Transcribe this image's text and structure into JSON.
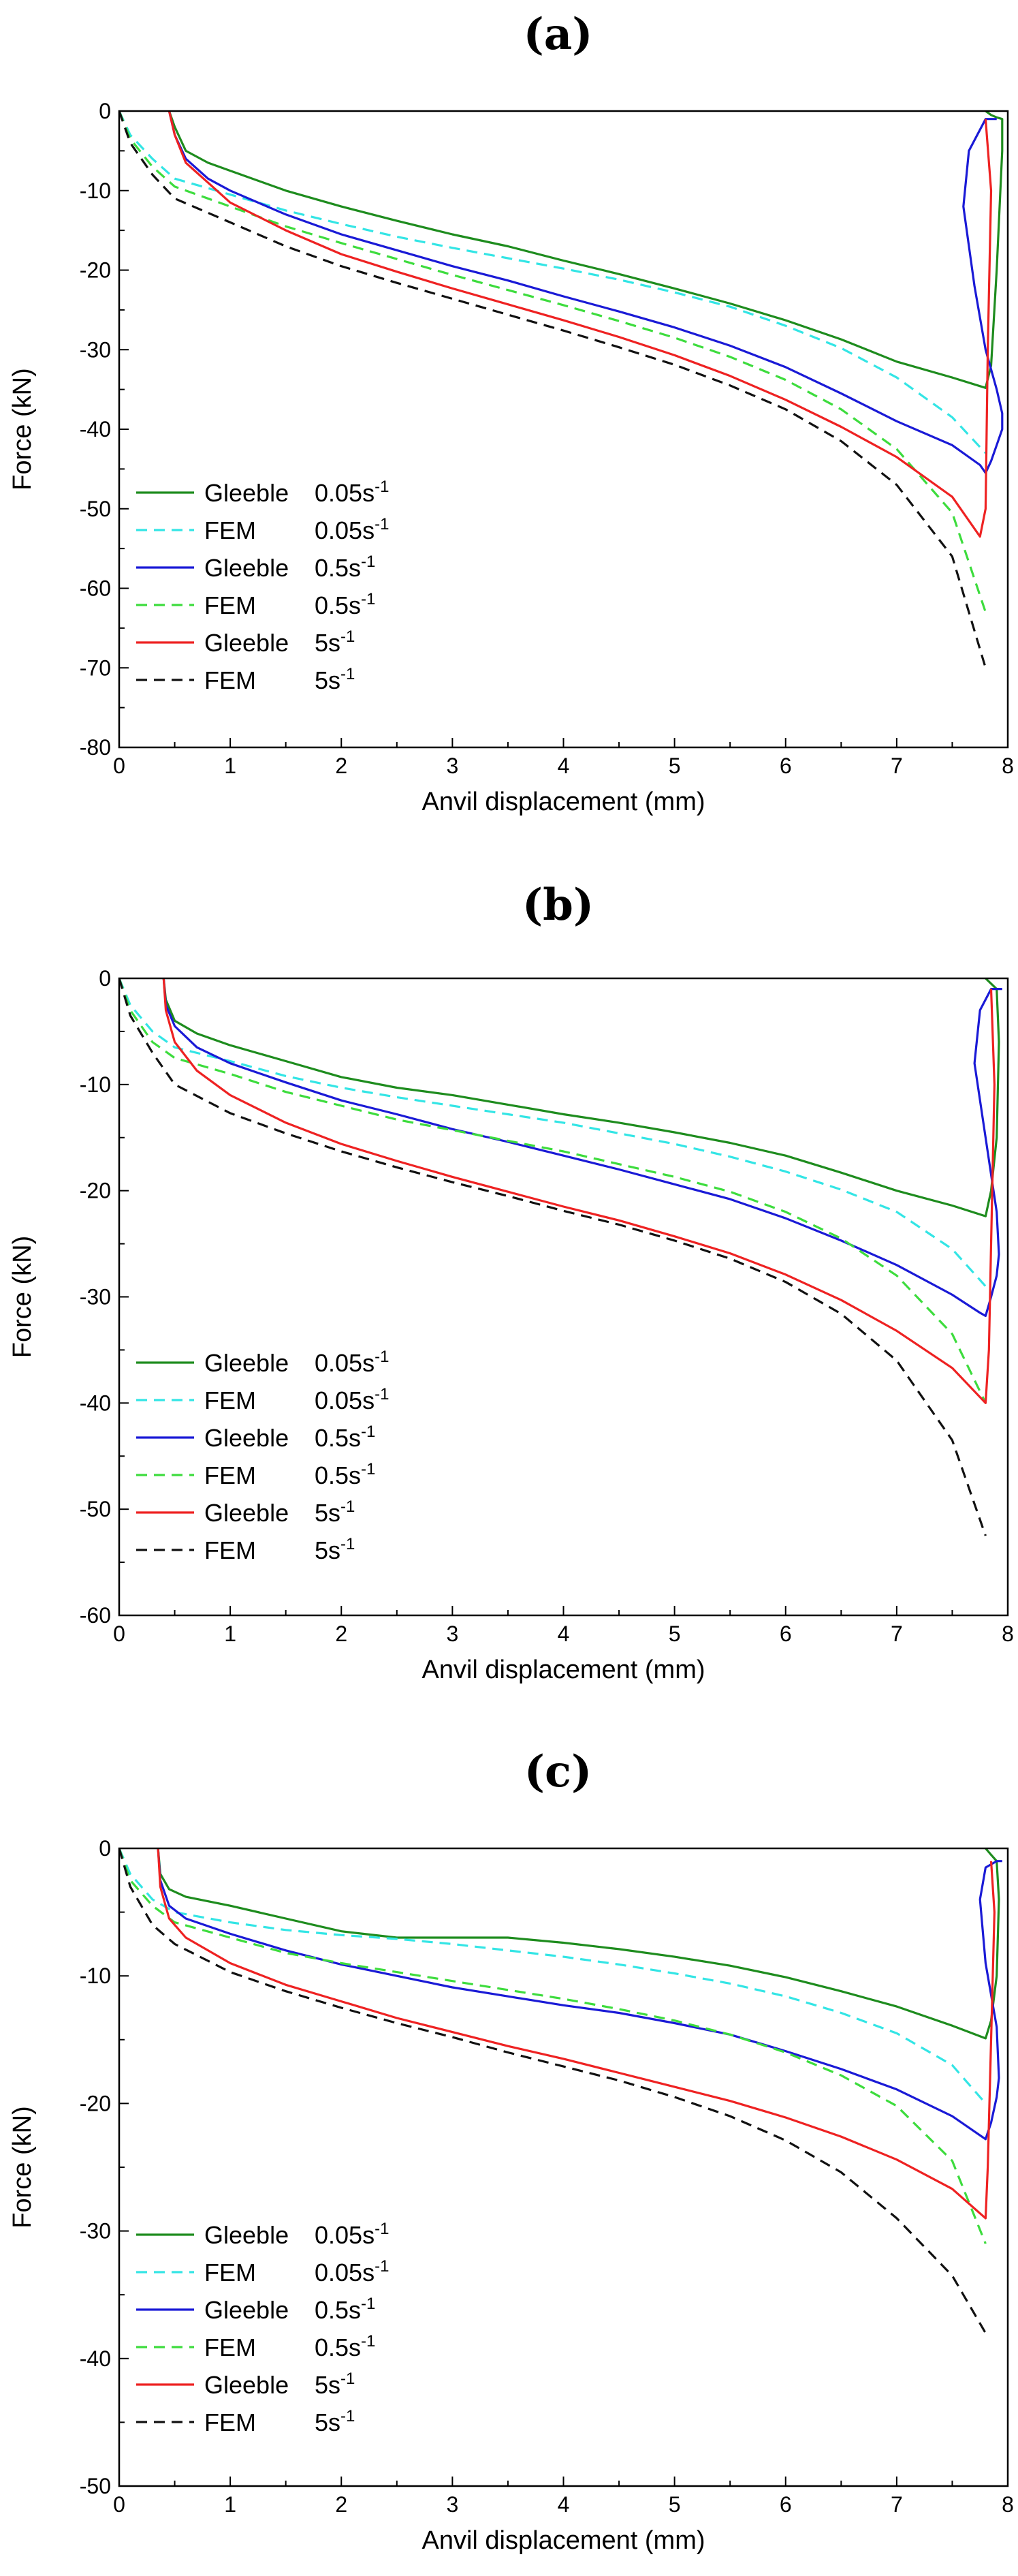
{
  "chart_data": [
    {
      "type": "line",
      "panel_label": "(a)",
      "xlabel": "Anvil displacement (mm)",
      "ylabel": "Force (kN)",
      "xlim": [
        0,
        8
      ],
      "ylim": [
        -80,
        0
      ],
      "xticks": [
        0,
        1,
        2,
        3,
        4,
        5,
        6,
        7,
        8
      ],
      "yticks": [
        0,
        -10,
        -20,
        -30,
        -40,
        -50,
        -60,
        -70,
        -80
      ],
      "legend_position": "lower-left",
      "series": [
        {
          "name": "Gleeble",
          "rate": "0.05s",
          "rate_exp": "-1",
          "color": "#1e8c1e",
          "dash": "solid",
          "x": [
            0.45,
            0.5,
            0.6,
            0.8,
            1,
            1.5,
            2,
            2.5,
            3,
            3.5,
            4,
            4.5,
            5,
            5.5,
            6,
            6.5,
            7,
            7.5,
            7.8,
            7.85,
            7.9,
            7.95,
            7.95,
            7.9,
            7.85,
            7.8
          ],
          "y": [
            0,
            -2,
            -5,
            -6.5,
            -7.5,
            -10,
            -12,
            -13.8,
            -15.5,
            -17,
            -18.8,
            -20.5,
            -22.3,
            -24.2,
            -26.3,
            -28.7,
            -31.5,
            -33.5,
            -34.8,
            -32,
            -20,
            -5,
            -1,
            -0.8,
            -0.5,
            0
          ]
        },
        {
          "name": "FEM",
          "rate": "0.05s",
          "rate_exp": "-1",
          "color": "#33e5e5",
          "dash": "dashed",
          "x": [
            0,
            0.1,
            0.3,
            0.5,
            1,
            1.5,
            2,
            2.5,
            3,
            3.5,
            4,
            4.5,
            5,
            5.5,
            6,
            6.5,
            7,
            7.5,
            7.8
          ],
          "y": [
            0,
            -3,
            -6,
            -8.5,
            -10.5,
            -12.5,
            -14.2,
            -15.8,
            -17.2,
            -18.5,
            -19.8,
            -21.2,
            -22.8,
            -24.6,
            -27,
            -29.8,
            -33.5,
            -38.5,
            -43
          ]
        },
        {
          "name": "Gleeble",
          "rate": "0.5s",
          "rate_exp": "-1",
          "color": "#1a1ad6",
          "dash": "solid",
          "x": [
            0.45,
            0.5,
            0.6,
            0.8,
            1,
            1.5,
            2,
            2.5,
            3,
            3.5,
            4,
            4.5,
            5,
            5.5,
            6,
            6.5,
            7,
            7.5,
            7.75,
            7.8,
            7.85,
            7.9,
            7.95,
            7.95,
            7.9,
            7.8,
            7.7,
            7.6,
            7.65,
            7.8,
            7.9
          ],
          "y": [
            0,
            -3,
            -6,
            -8.5,
            -10,
            -13,
            -15.5,
            -17.5,
            -19.5,
            -21.3,
            -23.3,
            -25.2,
            -27.2,
            -29.5,
            -32.2,
            -35.5,
            -39,
            -42,
            -44.5,
            -45.5,
            -44,
            -42,
            -40,
            -38,
            -35,
            -30,
            -22,
            -12,
            -5,
            -1,
            -1
          ]
        },
        {
          "name": "FEM",
          "rate": "0.5s",
          "rate_exp": "-1",
          "color": "#3ddc3d",
          "dash": "dashed",
          "x": [
            0,
            0.1,
            0.3,
            0.5,
            1,
            1.5,
            2,
            2.5,
            3,
            3.5,
            4,
            4.5,
            5,
            5.5,
            6,
            6.5,
            7,
            7.5,
            7.8
          ],
          "y": [
            0,
            -3.5,
            -7,
            -9.5,
            -12,
            -14.5,
            -16.6,
            -18.6,
            -20.6,
            -22.5,
            -24.4,
            -26.4,
            -28.5,
            -30.9,
            -33.8,
            -37.5,
            -42.5,
            -50.5,
            -63
          ]
        },
        {
          "name": "Gleeble",
          "rate": "5s",
          "rate_exp": "-1",
          "color": "#ee2222",
          "dash": "solid",
          "x": [
            0.45,
            0.5,
            0.6,
            0.8,
            1,
            1.5,
            2,
            2.5,
            3,
            3.5,
            4,
            4.5,
            5,
            5.5,
            6,
            6.5,
            7,
            7.5,
            7.75,
            7.8,
            7.82,
            7.85,
            7.8
          ],
          "y": [
            0,
            -3,
            -6.5,
            -9,
            -11.5,
            -15,
            -18,
            -20.2,
            -22.3,
            -24.3,
            -26.3,
            -28.4,
            -30.7,
            -33.3,
            -36.3,
            -39.7,
            -43.5,
            -48.5,
            -53.5,
            -50,
            -30,
            -10,
            -1
          ]
        },
        {
          "name": "FEM",
          "rate": "5s",
          "rate_exp": "-1",
          "color": "#111111",
          "dash": "dashed",
          "x": [
            0,
            0.1,
            0.3,
            0.5,
            1,
            1.5,
            2,
            2.5,
            3,
            3.5,
            4,
            4.5,
            5,
            5.5,
            6,
            6.5,
            7,
            7.5,
            7.8
          ],
          "y": [
            0,
            -4,
            -8,
            -11,
            -14,
            -17,
            -19.5,
            -21.6,
            -23.6,
            -25.6,
            -27.6,
            -29.7,
            -31.9,
            -34.5,
            -37.5,
            -41.5,
            -47,
            -56,
            -70
          ]
        }
      ]
    },
    {
      "type": "line",
      "panel_label": "(b)",
      "xlabel": "Anvil displacement (mm)",
      "ylabel": "Force (kN)",
      "xlim": [
        0,
        8
      ],
      "ylim": [
        -60,
        0
      ],
      "xticks": [
        0,
        1,
        2,
        3,
        4,
        5,
        6,
        7,
        8
      ],
      "yticks": [
        0,
        -10,
        -20,
        -30,
        -40,
        -50,
        -60
      ],
      "legend_position": "lower-left",
      "series": [
        {
          "name": "Gleeble",
          "rate": "0.05s",
          "rate_exp": "-1",
          "color": "#1e8c1e",
          "dash": "solid",
          "x": [
            0.4,
            0.42,
            0.5,
            0.7,
            1,
            1.5,
            2,
            2.5,
            3,
            3.5,
            4,
            4.5,
            5,
            5.5,
            6,
            6.5,
            7,
            7.5,
            7.8,
            7.85,
            7.9,
            7.92,
            7.9,
            7.85,
            7.8
          ],
          "y": [
            0,
            -2,
            -4,
            -5.2,
            -6.3,
            -7.8,
            -9.3,
            -10.3,
            -11,
            -11.9,
            -12.8,
            -13.6,
            -14.5,
            -15.5,
            -16.7,
            -18.3,
            -20,
            -21.4,
            -22.4,
            -20,
            -15,
            -6,
            -1,
            -0.5,
            0
          ]
        },
        {
          "name": "FEM",
          "rate": "0.05s",
          "rate_exp": "-1",
          "color": "#33e5e5",
          "dash": "dashed",
          "x": [
            0,
            0.1,
            0.3,
            0.5,
            1,
            1.5,
            2,
            2.5,
            3,
            3.5,
            4,
            4.5,
            5,
            5.5,
            6,
            6.5,
            7,
            7.5,
            7.8
          ],
          "y": [
            0,
            -2.5,
            -5,
            -6.5,
            -7.8,
            -9.2,
            -10.3,
            -11.2,
            -12,
            -12.8,
            -13.6,
            -14.6,
            -15.6,
            -16.8,
            -18.2,
            -19.9,
            -22,
            -25.5,
            -29
          ]
        },
        {
          "name": "Gleeble",
          "rate": "0.5s",
          "rate_exp": "-1",
          "color": "#1a1ad6",
          "dash": "solid",
          "x": [
            0.4,
            0.42,
            0.5,
            0.7,
            1,
            1.5,
            2,
            2.5,
            3,
            3.5,
            4,
            4.5,
            5,
            5.5,
            6,
            6.5,
            7,
            7.5,
            7.75,
            7.8,
            7.85,
            7.9,
            7.92,
            7.9,
            7.8,
            7.7,
            7.75,
            7.85,
            7.95
          ],
          "y": [
            0,
            -2.5,
            -4.5,
            -6.5,
            -8,
            -9.8,
            -11.5,
            -12.8,
            -14.2,
            -15.4,
            -16.7,
            -18,
            -19.4,
            -20.8,
            -22.6,
            -24.7,
            -27,
            -29.8,
            -31.5,
            -31.8,
            -30,
            -28,
            -26,
            -22,
            -15,
            -8,
            -3,
            -1,
            -1
          ]
        },
        {
          "name": "FEM",
          "rate": "0.5s",
          "rate_exp": "-1",
          "color": "#3ddc3d",
          "dash": "dashed",
          "x": [
            0,
            0.1,
            0.3,
            0.5,
            1,
            1.5,
            2,
            2.5,
            3,
            3.5,
            4,
            4.5,
            5,
            5.5,
            6,
            6.5,
            7,
            7.5,
            7.8
          ],
          "y": [
            0,
            -3,
            -6,
            -7.5,
            -9,
            -10.7,
            -12,
            -13.3,
            -14.3,
            -15.3,
            -16.3,
            -17.5,
            -18.7,
            -20.1,
            -22,
            -24.5,
            -28,
            -33.5,
            -40
          ]
        },
        {
          "name": "Gleeble",
          "rate": "5s",
          "rate_exp": "-1",
          "color": "#ee2222",
          "dash": "solid",
          "x": [
            0.4,
            0.42,
            0.5,
            0.7,
            1,
            1.5,
            2,
            2.5,
            3,
            3.5,
            4,
            4.5,
            5,
            5.5,
            6,
            6.5,
            7,
            7.5,
            7.8,
            7.83,
            7.85,
            7.88,
            7.85
          ],
          "y": [
            0,
            -3,
            -6,
            -8.7,
            -11,
            -13.6,
            -15.6,
            -17.2,
            -18.7,
            -20.1,
            -21.5,
            -22.8,
            -24.3,
            -25.9,
            -27.9,
            -30.3,
            -33.2,
            -36.7,
            -40,
            -35,
            -25,
            -10,
            -1
          ]
        },
        {
          "name": "FEM",
          "rate": "5s",
          "rate_exp": "-1",
          "color": "#111111",
          "dash": "dashed",
          "x": [
            0,
            0.1,
            0.3,
            0.5,
            1,
            1.5,
            2,
            2.5,
            3,
            3.5,
            4,
            4.5,
            5,
            5.5,
            6,
            6.5,
            7,
            7.5,
            7.8
          ],
          "y": [
            0,
            -3.5,
            -7,
            -10,
            -12.7,
            -14.6,
            -16.3,
            -17.8,
            -19.2,
            -20.5,
            -21.9,
            -23.2,
            -24.7,
            -26.4,
            -28.6,
            -31.6,
            -36,
            -43.5,
            -52.5
          ]
        }
      ]
    },
    {
      "type": "line",
      "panel_label": "(c)",
      "xlabel": "Anvil displacement (mm)",
      "ylabel": "Force (kN)",
      "xlim": [
        0,
        8
      ],
      "ylim": [
        -50,
        0
      ],
      "xticks": [
        0,
        1,
        2,
        3,
        4,
        5,
        6,
        7,
        8
      ],
      "yticks": [
        0,
        -10,
        -20,
        -30,
        -40,
        -50
      ],
      "legend_position": "lower-left",
      "series": [
        {
          "name": "Gleeble",
          "rate": "0.05s",
          "rate_exp": "-1",
          "color": "#1e8c1e",
          "dash": "solid",
          "x": [
            0.35,
            0.37,
            0.45,
            0.6,
            1,
            1.5,
            2,
            2.5,
            3,
            3.5,
            4,
            4.5,
            5,
            5.5,
            6,
            6.5,
            7,
            7.5,
            7.8,
            7.85,
            7.9,
            7.92,
            7.9,
            7.85,
            7.8
          ],
          "y": [
            0,
            -2,
            -3.2,
            -3.8,
            -4.5,
            -5.5,
            -6.5,
            -7,
            -7,
            -7,
            -7.4,
            -7.9,
            -8.5,
            -9.2,
            -10.1,
            -11.2,
            -12.4,
            -13.9,
            -14.9,
            -13.5,
            -10,
            -4,
            -1,
            -0.5,
            0
          ]
        },
        {
          "name": "FEM",
          "rate": "0.05s",
          "rate_exp": "-1",
          "color": "#33e5e5",
          "dash": "dashed",
          "x": [
            0,
            0.1,
            0.3,
            0.5,
            1,
            1.5,
            2,
            2.5,
            3,
            3.5,
            4,
            4.5,
            5,
            5.5,
            6,
            6.5,
            7,
            7.5,
            7.8
          ],
          "y": [
            0,
            -2,
            -4,
            -5,
            -5.8,
            -6.4,
            -6.8,
            -7.1,
            -7.5,
            -8,
            -8.5,
            -9.1,
            -9.8,
            -10.6,
            -11.6,
            -12.9,
            -14.5,
            -17,
            -20
          ]
        },
        {
          "name": "Gleeble",
          "rate": "0.5s",
          "rate_exp": "-1",
          "color": "#1a1ad6",
          "dash": "solid",
          "x": [
            0.35,
            0.37,
            0.45,
            0.6,
            1,
            1.5,
            2,
            2.5,
            3,
            3.5,
            4,
            4.5,
            5,
            5.5,
            6,
            6.5,
            7,
            7.5,
            7.75,
            7.8,
            7.85,
            7.9,
            7.92,
            7.9,
            7.8,
            7.75,
            7.8,
            7.9,
            7.95
          ],
          "y": [
            0,
            -2.5,
            -4.5,
            -5.5,
            -6.7,
            -8,
            -9.1,
            -10,
            -10.9,
            -11.6,
            -12.3,
            -12.9,
            -13.7,
            -14.6,
            -15.9,
            -17.3,
            -18.9,
            -21,
            -22.5,
            -22.8,
            -21.5,
            -19.5,
            -18,
            -14,
            -9,
            -4,
            -1.5,
            -1,
            -1
          ]
        },
        {
          "name": "FEM",
          "rate": "0.5s",
          "rate_exp": "-1",
          "color": "#3ddc3d",
          "dash": "dashed",
          "x": [
            0,
            0.1,
            0.3,
            0.5,
            1,
            1.5,
            2,
            2.5,
            3,
            3.5,
            4,
            4.5,
            5,
            5.5,
            6,
            6.5,
            7,
            7.5,
            7.8
          ],
          "y": [
            0,
            -2.5,
            -4.5,
            -5.8,
            -7,
            -8.2,
            -9,
            -9.7,
            -10.4,
            -11.1,
            -11.8,
            -12.6,
            -13.5,
            -14.6,
            -16,
            -17.8,
            -20.2,
            -24.5,
            -31
          ]
        },
        {
          "name": "Gleeble",
          "rate": "5s",
          "rate_exp": "-1",
          "color": "#ee2222",
          "dash": "solid",
          "x": [
            0.35,
            0.37,
            0.45,
            0.6,
            1,
            1.5,
            2,
            2.5,
            3,
            3.5,
            4,
            4.5,
            5,
            5.5,
            6,
            6.5,
            7,
            7.5,
            7.8,
            7.82,
            7.85,
            7.88,
            7.85
          ],
          "y": [
            0,
            -3,
            -5.5,
            -7,
            -9,
            -10.7,
            -12,
            -13.3,
            -14.4,
            -15.5,
            -16.5,
            -17.6,
            -18.7,
            -19.8,
            -21.1,
            -22.6,
            -24.4,
            -26.7,
            -29,
            -25,
            -15,
            -5,
            -1
          ]
        },
        {
          "name": "FEM",
          "rate": "5s",
          "rate_exp": "-1",
          "color": "#111111",
          "dash": "dashed",
          "x": [
            0,
            0.1,
            0.3,
            0.5,
            1,
            1.5,
            2,
            2.5,
            3,
            3.5,
            4,
            4.5,
            5,
            5.5,
            6,
            6.5,
            7,
            7.5,
            7.8
          ],
          "y": [
            0,
            -3,
            -6,
            -7.5,
            -9.7,
            -11.2,
            -12.5,
            -13.7,
            -14.8,
            -16,
            -17.1,
            -18.2,
            -19.5,
            -21,
            -22.9,
            -25.4,
            -29,
            -33.5,
            -38
          ]
        }
      ]
    }
  ]
}
